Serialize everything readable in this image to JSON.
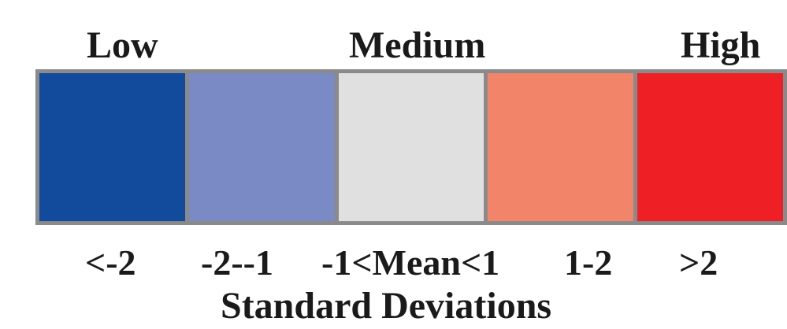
{
  "legend": {
    "top_labels": {
      "low": "Low",
      "medium": "Medium",
      "high": "High"
    },
    "bins": [
      {
        "label": "<-2",
        "color": "#124a9c"
      },
      {
        "label": "-2--1",
        "color": "#7a8ac4"
      },
      {
        "label": "-1<Mean<1",
        "color": "#dfe0df"
      },
      {
        "label": "1-2",
        "color": "#f2846a"
      },
      {
        "label": ">2",
        "color": "#ee2026"
      }
    ],
    "axis_label": "Standard Deviations",
    "border_color": "#8a8a8a"
  }
}
